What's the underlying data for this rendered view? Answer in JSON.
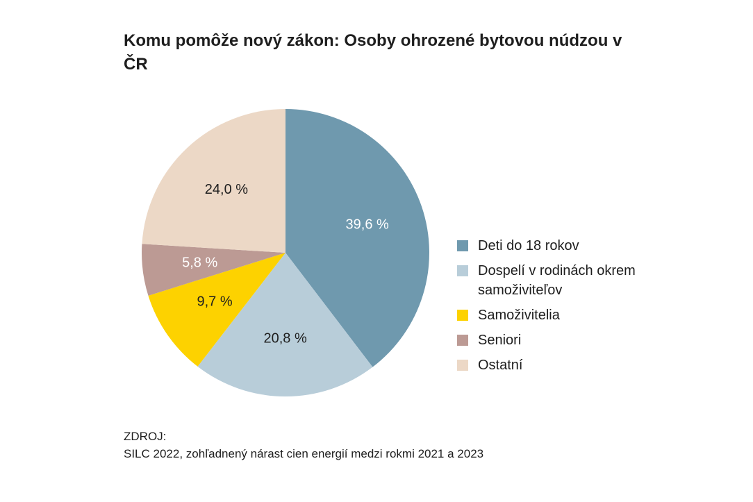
{
  "chart_data": {
    "type": "pie",
    "title": "Komu pomôže nový zákon: Osoby ohrozené bytovou núdzou v ČR",
    "categories": [
      "Deti do 18 rokov",
      "Dospelí v rodinách okrem samoživiteľov",
      "Samoživitelia",
      "Seniori",
      "Ostatní"
    ],
    "values": [
      39.6,
      20.8,
      9.7,
      5.8,
      24.0
    ],
    "labels": [
      "39,6 %",
      "20,8 %",
      "9,7 %",
      "5,8 %",
      "24,0 %"
    ],
    "colors": [
      "#6f99ae",
      "#b8cdd9",
      "#fdd200",
      "#bc9a94",
      "#ecd8c6"
    ],
    "label_colors": [
      "#ffffff",
      "#1e1e1e",
      "#1e1e1e",
      "#ffffff",
      "#1e1e1e"
    ],
    "legend_position": "right"
  },
  "legend": {
    "items": [
      {
        "label": "Deti do 18 rokov",
        "color": "#6f99ae"
      },
      {
        "label": "Dospelí v rodinách okrem samoživiteľov",
        "color": "#b8cdd9"
      },
      {
        "label": "Samoživitelia",
        "color": "#fdd200"
      },
      {
        "label": "Seniori",
        "color": "#bc9a94"
      },
      {
        "label": "Ostatní",
        "color": "#ecd8c6"
      }
    ]
  },
  "source": {
    "heading": "ZDROJ:",
    "text": "SILC 2022, zohľadnený nárast cien energií medzi rokmi 2021 a 2023"
  }
}
